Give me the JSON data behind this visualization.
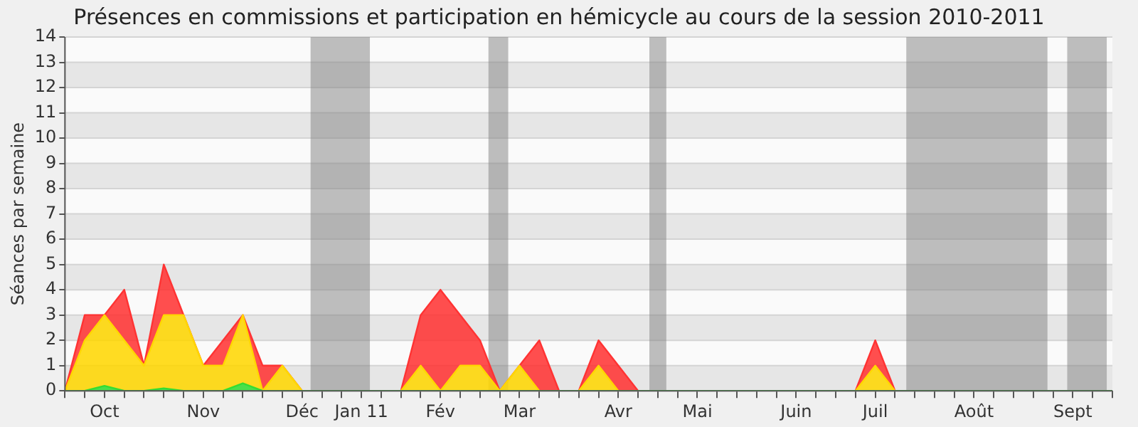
{
  "chart_data": {
    "type": "area",
    "title": "Présences en commissions et participation en hémicycle au cours de la session 2010-2011",
    "ylabel": "Séances par semaine",
    "stacked": true,
    "marker": "none",
    "grid": "y",
    "legend": false,
    "x": [
      "2010-09-27",
      "2010-10-04",
      "2010-10-11",
      "2010-10-18",
      "2010-10-25",
      "2010-11-01",
      "2010-11-08",
      "2010-11-15",
      "2010-11-22",
      "2010-11-29",
      "2010-12-06",
      "2010-12-13",
      "2010-12-20",
      "2010-12-27",
      "2011-01-03",
      "2011-01-10",
      "2011-01-17",
      "2011-01-24",
      "2011-01-31",
      "2011-02-07",
      "2011-02-14",
      "2011-02-21",
      "2011-02-28",
      "2011-03-07",
      "2011-03-14",
      "2011-03-21",
      "2011-03-28",
      "2011-04-04",
      "2011-04-11",
      "2011-04-18",
      "2011-04-25",
      "2011-05-02",
      "2011-05-09",
      "2011-05-16",
      "2011-05-23",
      "2011-05-30",
      "2011-06-06",
      "2011-06-13",
      "2011-06-20",
      "2011-06-27",
      "2011-07-04",
      "2011-07-11",
      "2011-07-18",
      "2011-07-25",
      "2011-08-01",
      "2011-08-08",
      "2011-08-15",
      "2011-08-22",
      "2011-08-29",
      "2011-09-05",
      "2011-09-12",
      "2011-09-19",
      "2011-09-26",
      "2011-10-03"
    ],
    "xlim": [
      "2010-09-27",
      "2011-10-03"
    ],
    "xticks": [
      {
        "value": "2010-09-27",
        "label": null
      },
      {
        "value": "2010-10-04",
        "label": null
      },
      {
        "value": "2010-10-11",
        "label": "Oct"
      },
      {
        "value": "2010-10-18",
        "label": null
      },
      {
        "value": "2010-10-25",
        "label": null
      },
      {
        "value": "2010-11-01",
        "label": null
      },
      {
        "value": "2010-11-08",
        "label": null
      },
      {
        "value": "2010-11-15",
        "label": "Nov"
      },
      {
        "value": "2010-11-22",
        "label": null
      },
      {
        "value": "2010-11-29",
        "label": null
      },
      {
        "value": "2010-12-06",
        "label": null
      },
      {
        "value": "2010-12-13",
        "label": null
      },
      {
        "value": "2010-12-20",
        "label": "Déc"
      },
      {
        "value": "2010-12-27",
        "label": null
      },
      {
        "value": "2011-01-03",
        "label": null
      },
      {
        "value": "2011-01-10",
        "label": "Jan 11"
      },
      {
        "value": "2011-01-17",
        "label": null
      },
      {
        "value": "2011-01-24",
        "label": null
      },
      {
        "value": "2011-01-31",
        "label": null
      },
      {
        "value": "2011-02-07",
        "label": "Fév"
      },
      {
        "value": "2011-02-14",
        "label": null
      },
      {
        "value": "2011-02-21",
        "label": null
      },
      {
        "value": "2011-02-28",
        "label": null
      },
      {
        "value": "2011-03-07",
        "label": "Mar"
      },
      {
        "value": "2011-03-14",
        "label": null
      },
      {
        "value": "2011-03-21",
        "label": null
      },
      {
        "value": "2011-03-28",
        "label": null
      },
      {
        "value": "2011-04-04",
        "label": null
      },
      {
        "value": "2011-04-11",
        "label": "Avr"
      },
      {
        "value": "2011-04-18",
        "label": null
      },
      {
        "value": "2011-04-25",
        "label": null
      },
      {
        "value": "2011-05-02",
        "label": null
      },
      {
        "value": "2011-05-09",
        "label": "Mai"
      },
      {
        "value": "2011-05-16",
        "label": null
      },
      {
        "value": "2011-05-23",
        "label": null
      },
      {
        "value": "2011-05-30",
        "label": null
      },
      {
        "value": "2011-06-06",
        "label": null
      },
      {
        "value": "2011-06-13",
        "label": "Juin"
      },
      {
        "value": "2011-06-20",
        "label": null
      },
      {
        "value": "2011-06-27",
        "label": null
      },
      {
        "value": "2011-07-04",
        "label": null
      },
      {
        "value": "2011-07-11",
        "label": "Juil"
      },
      {
        "value": "2011-07-18",
        "label": null
      },
      {
        "value": "2011-07-25",
        "label": null
      },
      {
        "value": "2011-08-01",
        "label": null
      },
      {
        "value": "2011-08-08",
        "label": null
      },
      {
        "value": "2011-08-15",
        "label": "Août"
      },
      {
        "value": "2011-08-22",
        "label": null
      },
      {
        "value": "2011-08-29",
        "label": null
      },
      {
        "value": "2011-09-05",
        "label": null
      },
      {
        "value": "2011-09-12",
        "label": null
      },
      {
        "value": "2011-09-19",
        "label": "Sept"
      },
      {
        "value": "2011-09-26",
        "label": null
      },
      {
        "value": "2011-10-03",
        "label": null
      }
    ],
    "ylim": [
      0,
      14
    ],
    "yticks": [
      0,
      1,
      2,
      3,
      4,
      5,
      6,
      7,
      8,
      9,
      10,
      11,
      12,
      13,
      14
    ],
    "bands": [
      {
        "axis": "x",
        "from": "2010-12-23",
        "to": "2011-01-13",
        "color": "#808080"
      },
      {
        "axis": "x",
        "from": "2011-02-24",
        "to": "2011-03-03",
        "color": "#808080"
      },
      {
        "axis": "x",
        "from": "2011-04-22",
        "to": "2011-04-28",
        "color": "#808080"
      },
      {
        "axis": "x",
        "from": "2011-07-22",
        "to": "2011-09-10",
        "color": "#808080"
      },
      {
        "axis": "x",
        "from": "2011-09-17",
        "to": "2011-10-01",
        "color": "#808080"
      }
    ],
    "series": [
      {
        "color": "#33dd33",
        "values": [
          0,
          0,
          0.2,
          0,
          0,
          0.1,
          0,
          0,
          0,
          0.3,
          0,
          0,
          0,
          0,
          0,
          0,
          0,
          0,
          0,
          0,
          0,
          0,
          0,
          0,
          0,
          0,
          0,
          0,
          0,
          0,
          0,
          0,
          0,
          0,
          0,
          0,
          0,
          0,
          0,
          0,
          0,
          0,
          0,
          0,
          0,
          0,
          0,
          0,
          0,
          0,
          0,
          0,
          0,
          0
        ]
      },
      {
        "color": "#ffd700",
        "values": [
          0,
          2,
          2.8,
          2,
          1,
          2.9,
          3,
          1,
          1,
          2.7,
          0,
          1,
          0,
          0,
          0,
          0,
          0,
          0,
          1,
          0,
          1,
          1,
          0,
          1,
          0,
          0,
          0,
          1,
          0,
          0,
          0,
          0,
          0,
          0,
          0,
          0,
          0,
          0,
          0,
          0,
          0,
          1,
          0,
          0,
          0,
          0,
          0,
          0,
          0,
          0,
          0,
          0,
          0,
          0
        ]
      },
      {
        "color": "#ff3333",
        "values": [
          0,
          1,
          0,
          2,
          0,
          2,
          0,
          0,
          1,
          0,
          1,
          0,
          0,
          0,
          0,
          0,
          0,
          0,
          2,
          4,
          2,
          1,
          0,
          0,
          2,
          0,
          0,
          1,
          1,
          0,
          0,
          0,
          0,
          0,
          0,
          0,
          0,
          0,
          0,
          0,
          0,
          1,
          0,
          0,
          0,
          0,
          0,
          0,
          0,
          0,
          0,
          0,
          0,
          0
        ]
      }
    ]
  }
}
